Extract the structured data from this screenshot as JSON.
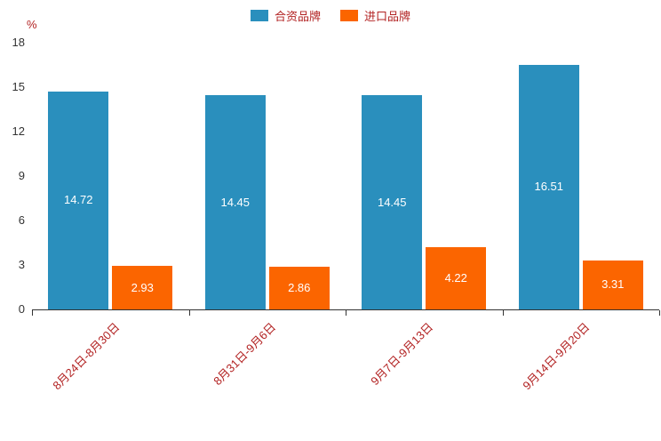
{
  "chart_data": {
    "type": "bar",
    "title": "",
    "ylabel": "%",
    "categories": [
      "8月24日-8月30日",
      "8月31日-9月6日",
      "9月7日-9月13日",
      "9月14日-9月20日"
    ],
    "series": [
      {
        "name": "合资品牌",
        "color": "#2a8fbd",
        "values": [
          14.72,
          14.45,
          14.45,
          16.51
        ]
      },
      {
        "name": "进口品牌",
        "color": "#fb6500",
        "values": [
          2.93,
          2.86,
          4.22,
          3.31
        ]
      }
    ],
    "yticks": [
      0,
      3,
      6,
      9,
      12,
      15,
      18
    ],
    "ylim": [
      0,
      18
    ],
    "legend_position": "top-center",
    "grid": false,
    "x_label_rotation_deg": -45,
    "bar_label_color": "#ffffff",
    "axis_label_color": "#b22222",
    "tick_label_color": "#333333",
    "axis_line_color": "#333333"
  }
}
